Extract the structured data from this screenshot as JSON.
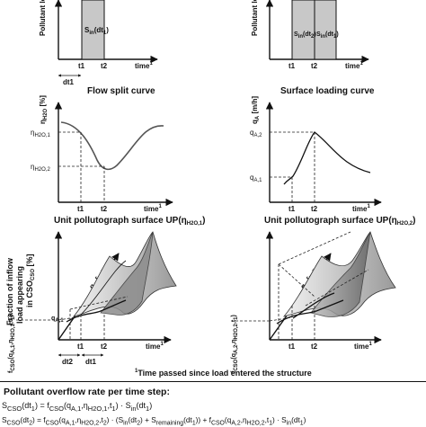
{
  "top_left": {
    "ylabel": "Pollutant lo",
    "bar_label": "S",
    "bar_sub": "in",
    "bar_arg": "(dt",
    "bar_arg_sub": "1",
    "ticks": [
      "t1",
      "t2"
    ],
    "xlabel": "time",
    "xsup": "1",
    "interval": "dt1"
  },
  "top_right": {
    "ylabel": "Pollutant lo",
    "bar1_label": "S",
    "bar1_sub": "in",
    "bar1_arg_sub": "2",
    "bar2_label": "S",
    "bar2_sub": "in",
    "bar2_arg_sub": "1",
    "ticks": [
      "t1",
      "t2"
    ],
    "xlabel": "time",
    "xsup": "1"
  },
  "flow_split": {
    "title": "Flow split curve",
    "ylabel": "η",
    "ylabel_sub": "H2O",
    "ylabel_unit": " [%]",
    "level1": "η",
    "level1_sub": "H2O,1",
    "level2": "η",
    "level2_sub": "H2O,2",
    "ticks": [
      "t1",
      "t2"
    ],
    "xlabel": "time",
    "xsup": "1"
  },
  "surface_loading": {
    "title": "Surface loading curve",
    "ylabel": "q",
    "ylabel_sub": "A",
    "ylabel_unit": " [m/h]",
    "level1": "q",
    "level1_sub": "A,2",
    "level2": "q",
    "level2_sub": "A,1",
    "ticks": [
      "t1",
      "t2"
    ],
    "xlabel": "time",
    "xsup": "1"
  },
  "up_left": {
    "title": "Unit pollutograph surface UP(η",
    "title_sub": "H2O,1",
    "title_end": ")",
    "ylabel_line1": "Fraction of inflow",
    "ylabel_line2": "load appearing",
    "ylabel_line3": "in CSO",
    "ylabel_sub": "CSO",
    "ylabel_unit": " [%]",
    "qlabel": "q",
    "qlabel_sub": "A",
    "qlabel_unit": " [m/h]",
    "f_label": "f",
    "f_sub": "CSO",
    "f_args": "(q",
    "f_args_sub": "A,1",
    "f_args2": ",η",
    "f_args2_sub": "H2O,1",
    "f_args3": ",t",
    "f_args3_sub": "1",
    "f_end": ")",
    "ticks": [
      "t1",
      "t2"
    ],
    "intervals": [
      "dt2",
      "dt1"
    ],
    "xlabel": "time",
    "xsup": "1"
  },
  "up_right": {
    "title": "Unit pollutograph surface UP(η",
    "title_sub": "H2O,2",
    "title_end": ")",
    "qlabel": "q",
    "qlabel_sub": "A",
    "qlabel_unit": " [m/h]",
    "f_label": "f",
    "f_sub": "CSO",
    "f_args": "(q",
    "f_args_sub": "A,2",
    "f_args2": ",η",
    "f_args2_sub": "H2O,2",
    "f_args3": ",t",
    "f_args3_sub": "1",
    "f_end": ")",
    "ticks": [
      "t1",
      "t2"
    ],
    "xlabel": "time",
    "xsup": "1"
  },
  "footnote": {
    "sup": "1",
    "text": "Time passed since load entered the structure"
  },
  "footer": {
    "title": "Pollutant overflow rate per time step:",
    "eq1": "S",
    "eq1_sub": "CSO",
    "eq1_rest": "(dt",
    "eq1_rest_sub": "1",
    "eq1_mid": ") = f",
    "eq1_mid_sub": "CSO",
    "eq1_args": "(q",
    "eq1_args_sub": "A,1",
    "eq1_args2": ",η",
    "eq1_args2_sub": "H2O,1",
    "eq1_args3": ",t",
    "eq1_args3_sub": "1",
    "eq1_tail": ") · S",
    "eq1_tail_sub": "in",
    "eq1_tail2": "(dt",
    "eq1_tail2_sub": "1",
    "eq1_end": ")",
    "eq2": "S",
    "eq2_sub": "CSO",
    "eq2_rest": "(dt",
    "eq2_rest_sub": "2",
    "eq2_mid": ") = f",
    "eq2_mid_sub": "CSO",
    "eq2_args": "(q",
    "eq2_args_sub": "A,1",
    "eq2_args2": ",η",
    "eq2_args2_sub": "H2O,2",
    "eq2_args3": ",t",
    "eq2_args3_sub": "2",
    "eq2_tail": ") · (S",
    "eq2_tail_sub": "in",
    "eq2_tail2": "(dt",
    "eq2_tail2_sub": "2",
    "eq2_tail3": ") + S",
    "eq2_tail3_sub": "remaining",
    "eq2_tail4": "(dt",
    "eq2_tail4_sub": "1",
    "eq2_tail5": ")) + f",
    "eq2_tail5_sub": "CSO",
    "eq2_tail6": "(q",
    "eq2_tail6_sub": "A,2",
    "eq2_tail7": ",η",
    "eq2_tail7_sub": "H2O,2",
    "eq2_tail8": ",t",
    "eq2_tail8_sub": "1",
    "eq2_tail9": ") · S",
    "eq2_tail9_sub": "in",
    "eq2_tail10": "(dt",
    "eq2_tail10_sub": "1",
    "eq2_end": ")"
  }
}
